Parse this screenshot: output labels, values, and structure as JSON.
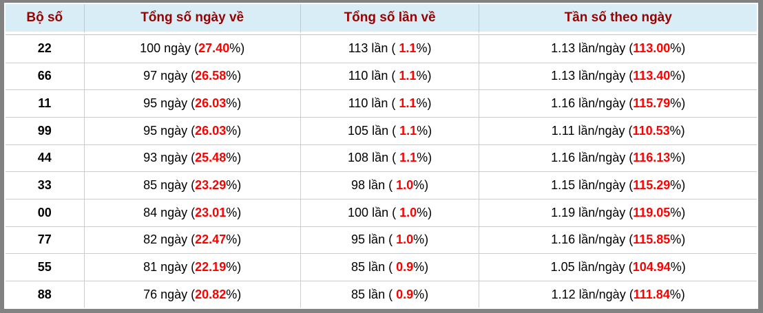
{
  "colors": {
    "frame_border": "#828282",
    "header_bg": "#d9edf6",
    "header_text": "#990000",
    "highlight_red": "#ff0000",
    "grid_line": "#cccccc",
    "body_text": "#000000"
  },
  "table": {
    "columns": [
      {
        "id": "pair",
        "label": "Bộ số"
      },
      {
        "id": "days",
        "label": "Tổng số ngày về"
      },
      {
        "id": "times",
        "label": "Tổng số lần về"
      },
      {
        "id": "freq",
        "label": "Tần số theo ngày"
      }
    ],
    "units": {
      "days": "ngày",
      "times": "lần",
      "freq": "lần/ngày"
    },
    "rows": [
      {
        "pair": "22",
        "days": "100",
        "days_pct": "27.40",
        "times": "113",
        "times_pct": "1.1",
        "freq": "1.13",
        "freq_pct": "113.00"
      },
      {
        "pair": "66",
        "days": "97",
        "days_pct": "26.58",
        "times": "110",
        "times_pct": "1.1",
        "freq": "1.13",
        "freq_pct": "113.40"
      },
      {
        "pair": "11",
        "days": "95",
        "days_pct": "26.03",
        "times": "110",
        "times_pct": "1.1",
        "freq": "1.16",
        "freq_pct": "115.79"
      },
      {
        "pair": "99",
        "days": "95",
        "days_pct": "26.03",
        "times": "105",
        "times_pct": "1.1",
        "freq": "1.11",
        "freq_pct": "110.53"
      },
      {
        "pair": "44",
        "days": "93",
        "days_pct": "25.48",
        "times": "108",
        "times_pct": "1.1",
        "freq": "1.16",
        "freq_pct": "116.13"
      },
      {
        "pair": "33",
        "days": "85",
        "days_pct": "23.29",
        "times": "98",
        "times_pct": "1.0",
        "freq": "1.15",
        "freq_pct": "115.29"
      },
      {
        "pair": "00",
        "days": "84",
        "days_pct": "23.01",
        "times": "100",
        "times_pct": "1.0",
        "freq": "1.19",
        "freq_pct": "119.05"
      },
      {
        "pair": "77",
        "days": "82",
        "days_pct": "22.47",
        "times": "95",
        "times_pct": "1.0",
        "freq": "1.16",
        "freq_pct": "115.85"
      },
      {
        "pair": "55",
        "days": "81",
        "days_pct": "22.19",
        "times": "85",
        "times_pct": "0.9",
        "freq": "1.05",
        "freq_pct": "104.94"
      },
      {
        "pair": "88",
        "days": "76",
        "days_pct": "20.82",
        "times": "85",
        "times_pct": "0.9",
        "freq": "1.12",
        "freq_pct": "111.84"
      }
    ]
  }
}
